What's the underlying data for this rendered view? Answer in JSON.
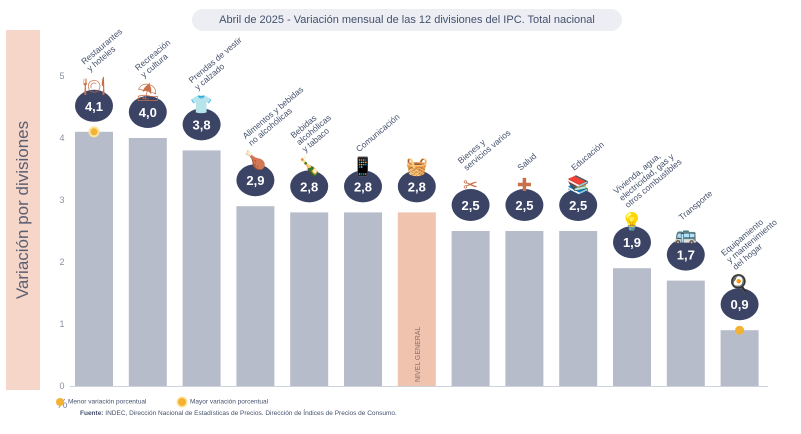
{
  "title": "Abril de 2025 - Variación mensual de las 12 divisiones del IPC. Total nacional",
  "legend": {
    "min_label": "Menor variación porcentual",
    "max_label": "Mayor variación porcentual"
  },
  "source": {
    "label": "Fuente:",
    "text": " INDEC, Dirección Nacional de Estadísticas de Precios. Dirección de Índices de Precios de Consumo."
  },
  "colors": {
    "bar": "#b7bccb",
    "general_bar": "#efc3ae",
    "badge": "#3c4466",
    "marker": "#f2b233",
    "axis_text": "#8a90a4",
    "label_text": "#44506b"
  },
  "chart_data": {
    "type": "bar",
    "ylabel": "Variación por divisiones",
    "unit": "%",
    "ylim": [
      0,
      5
    ],
    "yticks": [
      "0",
      "1",
      "2",
      "3",
      "4",
      "5"
    ],
    "grid": false,
    "legend_placement": "bottom-left",
    "bars": [
      {
        "label_lines": [
          "Restaurantes",
          "y hoteles"
        ],
        "value": 4.1,
        "display": "4,1",
        "icon": "fork-and-plate-icon",
        "marker": "max"
      },
      {
        "label_lines": [
          "Recreación",
          "y cultura"
        ],
        "value": 4.0,
        "display": "4,0",
        "icon": "beach-umbrella-icon"
      },
      {
        "label_lines": [
          "Prendas de vestir",
          "y calzado"
        ],
        "value": 3.8,
        "display": "3,8",
        "icon": "shirt-icon"
      },
      {
        "label_lines": [
          "Alimentos y bebidas",
          "no alcohólicas"
        ],
        "value": 2.9,
        "display": "2,9",
        "icon": "food-icon"
      },
      {
        "label_lines": [
          "Bebidas",
          "alcohólicas",
          "y tabaco"
        ],
        "value": 2.8,
        "display": "2,8",
        "icon": "bottle-icon"
      },
      {
        "label_lines": [
          "Comunicación"
        ],
        "value": 2.8,
        "display": "2,8",
        "icon": "phone-icon"
      },
      {
        "label_lines": [],
        "value": 2.8,
        "display": "2,8",
        "icon": "shopping-basket-icon",
        "bar_text": "NIVEL GENERAL",
        "general": true
      },
      {
        "label_lines": [
          "Bienes y",
          "servicios varios"
        ],
        "value": 2.5,
        "display": "2,5",
        "icon": "scissors-comb-icon"
      },
      {
        "label_lines": [
          "Salud"
        ],
        "value": 2.5,
        "display": "2,5",
        "icon": "medical-cross-icon"
      },
      {
        "label_lines": [
          "Educación"
        ],
        "value": 2.5,
        "display": "2,5",
        "icon": "books-icon"
      },
      {
        "label_lines": [
          "Vivienda, agua,",
          "electricidad, gas y",
          "otros combustibles"
        ],
        "value": 1.9,
        "display": "1,9",
        "icon": "bulb-wrench-icon"
      },
      {
        "label_lines": [
          "Transporte"
        ],
        "value": 1.7,
        "display": "1,7",
        "icon": "bus-card-icon"
      },
      {
        "label_lines": [
          "Equipamiento",
          "y mantenimiento",
          "del hogar"
        ],
        "value": 0.9,
        "display": "0,9",
        "icon": "appliance-icon",
        "marker": "min"
      }
    ]
  }
}
